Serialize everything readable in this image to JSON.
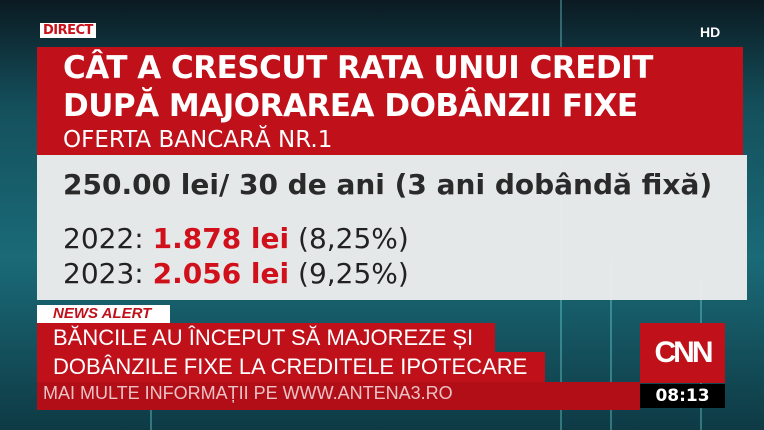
{
  "header": {
    "live_badge": "DIRECT",
    "quality_badge": "HD"
  },
  "title": {
    "line1": "CÂT A CRESCUT RATA UNUI CREDIT",
    "line2": "DUPĂ MAJORAREA DOBÂNZII FIXE",
    "subtitle": "OFERTA BANCARĂ NR.1"
  },
  "info": {
    "loan": "250.00 lei/ 30 de ani (3 ani dobândă fixă)",
    "rows": [
      {
        "year": "2022:",
        "amount": "1.878 lei",
        "rate": "(8,25%)"
      },
      {
        "year": "2023:",
        "amount": "2.056 lei",
        "rate": "(9,25%)"
      }
    ]
  },
  "lower_third": {
    "tag": "NEWS ALERT",
    "headline_line1": "BĂNCILE AU ÎNCEPUT SĂ MAJOREZE ȘI",
    "headline_line2": "DOBÂNZILE FIXE LA CREDITELE IPOTECARE",
    "ticker": "MAI MULTE INFORMAȚII PE WWW.ANTENA3.RO",
    "logo": "CNN",
    "clock": "08:13"
  },
  "colors": {
    "accent_red": "#c0101a",
    "background_teal": "#1a6a78"
  }
}
